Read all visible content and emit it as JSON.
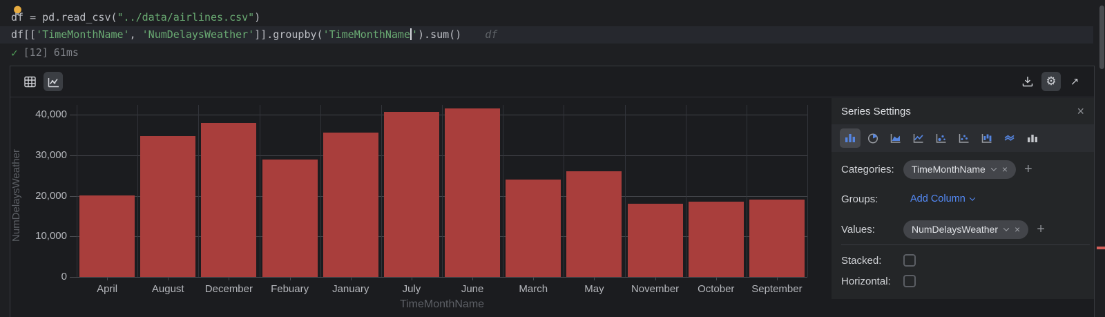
{
  "editor": {
    "line1": {
      "code_pre": "df = pd.read_csv(",
      "string": "\"../data/airlines.csv\"",
      "code_post": ")"
    },
    "line2": {
      "t1": "df[[",
      "s1": "'TimeMonthName'",
      "t2": ", ",
      "s2": "'NumDelaysWeather'",
      "t3": "]].groupby(",
      "s3": "'TimeMonthName",
      "s3_close": "'",
      "t4": ").sum()"
    },
    "inline_hint": "df",
    "status": {
      "check": "✓",
      "execution_count": "[12]",
      "duration": "61ms"
    }
  },
  "toolbar": {
    "left_icons": [
      "table-view",
      "chart-view"
    ],
    "selected_left": "chart-view",
    "right_icons": [
      "download",
      "settings-gear",
      "open-in-new"
    ],
    "selected_right": "settings-gear"
  },
  "chart_data": {
    "type": "bar",
    "categories": [
      "April",
      "August",
      "December",
      "Febuary",
      "January",
      "July",
      "June",
      "March",
      "May",
      "November",
      "October",
      "September"
    ],
    "values": [
      20100,
      34700,
      38000,
      29000,
      35500,
      40600,
      41600,
      24000,
      26100,
      18100,
      18500,
      19000
    ],
    "title": "",
    "xlabel": "TimeMonthName",
    "ylabel": "NumDelaysWeather",
    "ylim": [
      0,
      44000
    ],
    "yticks": [
      0,
      10000,
      20000,
      30000,
      40000
    ],
    "ytick_labels": [
      "0",
      "10,000",
      "20,000",
      "30,000",
      "40,000"
    ],
    "grid": true,
    "legend": "none",
    "bar_color": "#A93E3C"
  },
  "series_settings": {
    "title": "Series Settings",
    "close_icon": "×",
    "chart_types": [
      "bar",
      "pie",
      "area",
      "line",
      "bubble",
      "scatter",
      "candlestick",
      "range-area",
      "column"
    ],
    "selected_chart_type": "bar",
    "categories": {
      "label": "Categories:",
      "value": "TimeMonthName"
    },
    "groups": {
      "label": "Groups:",
      "value": "Add Column"
    },
    "values": {
      "label": "Values:",
      "value": "NumDelaysWeather"
    },
    "stacked": {
      "label": "Stacked:",
      "checked": false
    },
    "horizontal": {
      "label": "Horizontal:",
      "checked": false
    }
  },
  "colors": {
    "bar": "#A93E3C",
    "accent_blue": "#548AF7",
    "status_green": "#4F9E58",
    "string_green": "#6AAB73"
  }
}
